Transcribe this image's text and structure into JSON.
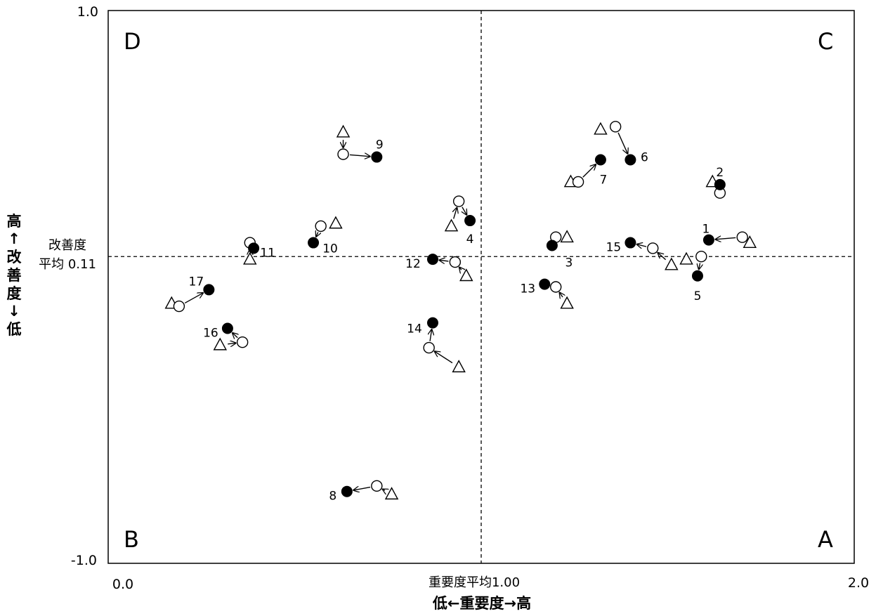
{
  "chart_data": {
    "type": "scatter",
    "x_range": [
      0.0,
      2.0
    ],
    "y_range": [
      -1.0,
      1.0
    ],
    "x_tick_labels": [
      "0.0",
      "2.0"
    ],
    "y_tick_labels": [
      "1.0",
      "-1.0"
    ],
    "x_title": "低←重要度→高",
    "y_title_chars": [
      "高",
      "↑",
      "改",
      "善",
      "度",
      "↓",
      "低"
    ],
    "x_avg": 1.0,
    "y_avg": 0.11,
    "x_avg_label": "重要度平均1.00",
    "y_avg_label_line1": "改善度",
    "y_avg_label_line2": "平均 0.11",
    "quadrants": [
      "D",
      "C",
      "B",
      "A"
    ],
    "items": [
      {
        "id": "1",
        "filled": [
          1.61,
          0.17
        ],
        "open": [
          1.7,
          0.18
        ],
        "tri": [
          1.72,
          0.16
        ]
      },
      {
        "id": "2",
        "filled": [
          1.64,
          0.37
        ],
        "open": [
          1.64,
          0.34
        ],
        "tri": [
          1.62,
          0.38
        ]
      },
      {
        "id": "3",
        "filled": [
          1.19,
          0.15
        ],
        "open": [
          1.2,
          0.18
        ],
        "tri": [
          1.23,
          0.18
        ]
      },
      {
        "id": "4",
        "filled": [
          0.97,
          0.24
        ],
        "open": [
          0.94,
          0.31
        ],
        "tri": [
          0.92,
          0.22
        ]
      },
      {
        "id": "5",
        "filled": [
          1.58,
          0.04
        ],
        "open": [
          1.59,
          0.11
        ],
        "tri": [
          1.55,
          0.1
        ]
      },
      {
        "id": "6",
        "filled": [
          1.4,
          0.46
        ],
        "open": [
          1.36,
          0.58
        ],
        "tri": [
          1.32,
          0.57
        ]
      },
      {
        "id": "7",
        "filled": [
          1.32,
          0.46
        ],
        "open": [
          1.26,
          0.38
        ],
        "tri": [
          1.24,
          0.38
        ]
      },
      {
        "id": "8",
        "filled": [
          0.64,
          -0.74
        ],
        "open": [
          0.72,
          -0.72
        ],
        "tri": [
          0.76,
          -0.75
        ]
      },
      {
        "id": "9",
        "filled": [
          0.72,
          0.47
        ],
        "open": [
          0.63,
          0.48
        ],
        "tri": [
          0.63,
          0.56
        ]
      },
      {
        "id": "10",
        "filled": [
          0.55,
          0.16
        ],
        "open": [
          0.57,
          0.22
        ],
        "tri": [
          0.61,
          0.23
        ]
      },
      {
        "id": "11",
        "filled": [
          0.39,
          0.14
        ],
        "open": [
          0.38,
          0.16
        ],
        "tri": [
          0.38,
          0.1
        ]
      },
      {
        "id": "12",
        "filled": [
          0.87,
          0.1
        ],
        "open": [
          0.93,
          0.09
        ],
        "tri": [
          0.96,
          0.04
        ]
      },
      {
        "id": "13",
        "filled": [
          1.17,
          0.01
        ],
        "open": [
          1.2,
          0.0
        ],
        "tri": [
          1.23,
          -0.06
        ]
      },
      {
        "id": "14",
        "filled": [
          0.87,
          -0.13
        ],
        "open": [
          0.86,
          -0.22
        ],
        "tri": [
          0.94,
          -0.29
        ]
      },
      {
        "id": "15",
        "filled": [
          1.4,
          0.16
        ],
        "open": [
          1.46,
          0.14
        ],
        "tri": [
          1.51,
          0.08
        ]
      },
      {
        "id": "16",
        "filled": [
          0.32,
          -0.15
        ],
        "open": [
          0.36,
          -0.2
        ],
        "tri": [
          0.3,
          -0.21
        ]
      },
      {
        "id": "17",
        "filled": [
          0.27,
          -0.01
        ],
        "open": [
          0.19,
          -0.07
        ],
        "tri": [
          0.17,
          -0.06
        ]
      }
    ]
  }
}
